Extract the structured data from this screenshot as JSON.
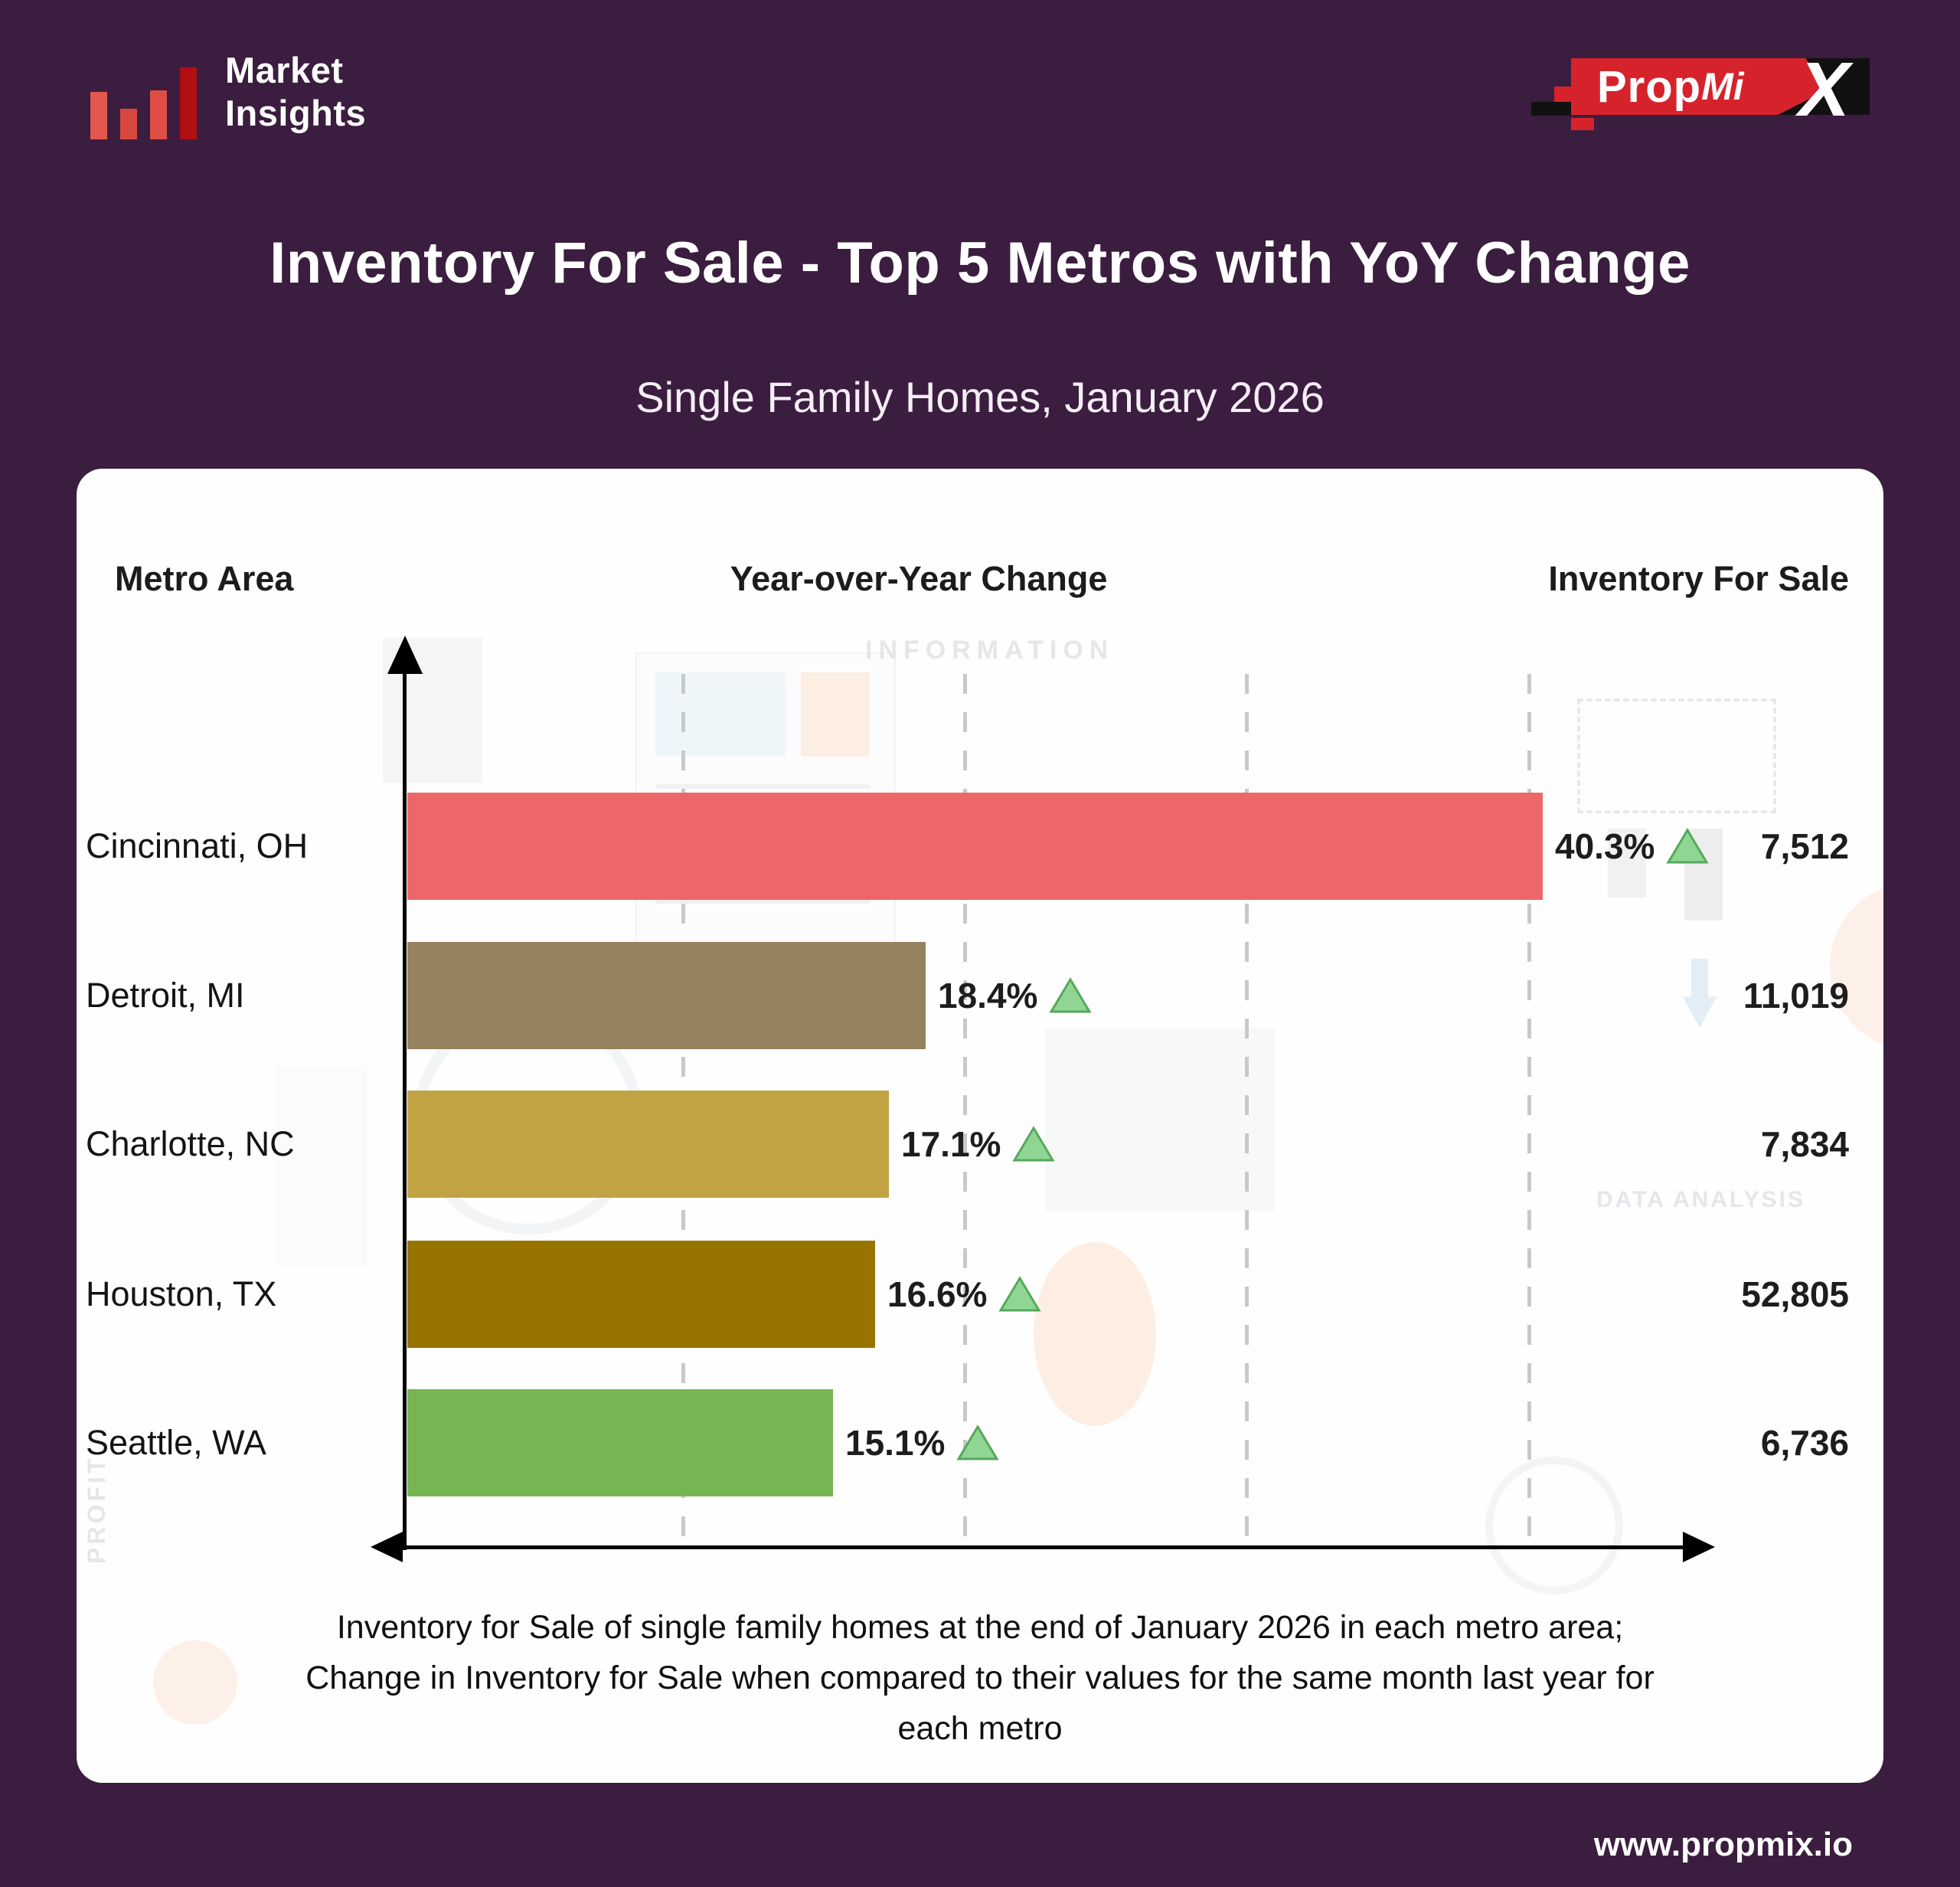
{
  "brand": {
    "market_insights_line1": "Market",
    "market_insights_line2": "Insights",
    "propmix_prop": "Prop",
    "propmix_mi": "Mi",
    "propmix_x": "X"
  },
  "title": "Inventory For Sale - Top 5 Metros with YoY Change",
  "subtitle": "Single Family Homes, January 2026",
  "table_headers": {
    "metro": "Metro Area",
    "yoy": "Year-over-Year Change",
    "inventory": "Inventory For Sale"
  },
  "chart_data": {
    "type": "bar",
    "orientation": "horizontal",
    "title": "Inventory For Sale - Top 5 Metros with YoY Change",
    "subtitle": "Single Family Homes, January 2026",
    "categories": [
      "Cincinnati, OH",
      "Detroit, MI",
      "Charlotte, NC",
      "Houston, TX",
      "Seattle, WA"
    ],
    "series": [
      {
        "name": "Year-over-Year Change (%)",
        "values": [
          40.3,
          18.4,
          17.1,
          16.6,
          15.1
        ]
      },
      {
        "name": "Inventory For Sale",
        "values": [
          7512,
          11019,
          7834,
          52805,
          6736
        ]
      }
    ],
    "yoy_labels": [
      "40.3%",
      "18.4%",
      "17.1%",
      "16.6%",
      "15.1%"
    ],
    "trend_directions": [
      "up",
      "up",
      "up",
      "up",
      "up"
    ],
    "inventory_labels": [
      "7,512",
      "11,019",
      "7,834",
      "52,805",
      "6,736"
    ],
    "bar_colors": [
      "#ee6768",
      "#97825f",
      "#c2a344",
      "#977300",
      "#77b553"
    ],
    "xlim": [
      0,
      45
    ],
    "gridlines_percent": [
      10,
      20,
      30,
      40
    ],
    "grid_style": "dashed-vertical",
    "legend": "none"
  },
  "watermark": {
    "information": "INFORMATION",
    "data_analysis": "DATA ANALYSIS",
    "profit": "PROFIT"
  },
  "footnote": {
    "lines": [
      "Inventory for Sale of single family homes at the end of January 2026 in each metro area;",
      "Change in Inventory for Sale when compared to their values for the same month last year for",
      "each metro"
    ]
  },
  "footer": {
    "website": "www.propmix.io"
  },
  "colors": {
    "background": "#3b1d3f",
    "card": "#fefefe",
    "accent_red": "#d6232b",
    "axis": "#000000",
    "gridline": "#c9c9c9",
    "triangle_fill": "#8fd694",
    "triangle_stroke": "#57a85c",
    "text_dark": "#1d1d1d",
    "text_light": "#ffffff"
  }
}
